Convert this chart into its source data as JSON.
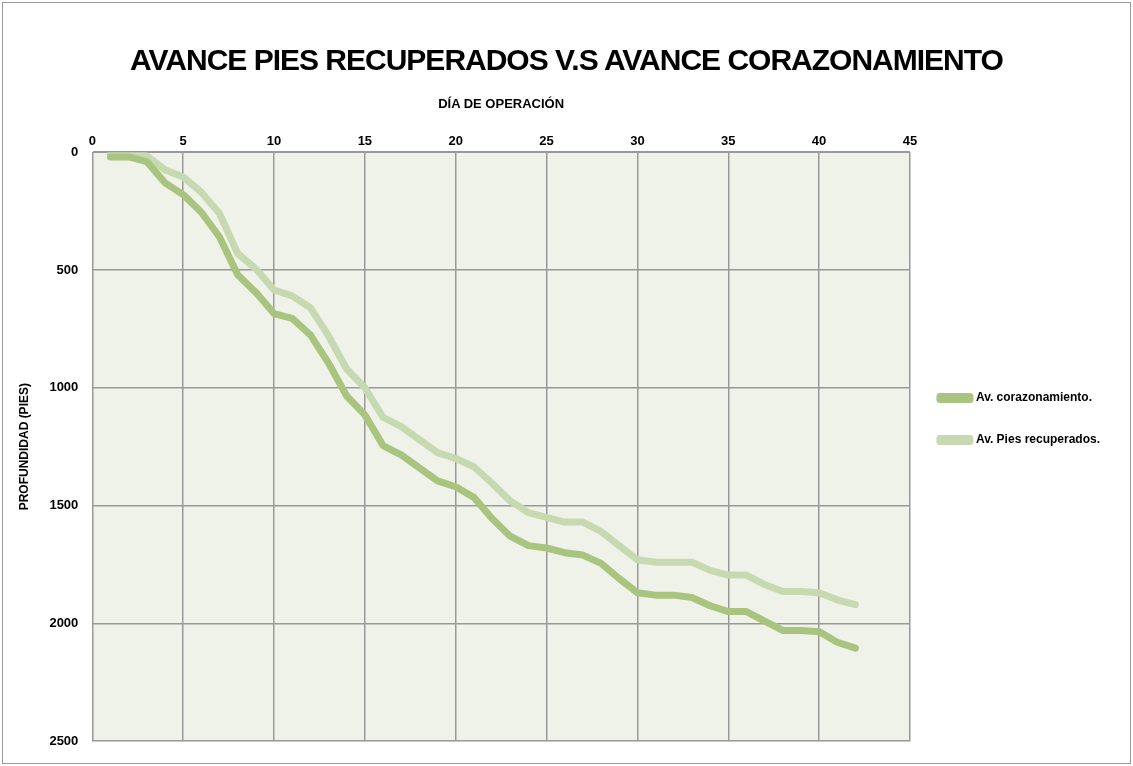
{
  "chart_data": {
    "type": "line",
    "title": "AVANCE PIES RECUPERADOS V.S AVANCE CORAZONAMIENTO",
    "xlabel": "DÍA DE OPERACIÓN",
    "ylabel": "PROFUNDIDAD (PIES)",
    "x": [
      1,
      2,
      3,
      4,
      5,
      6,
      7,
      8,
      9,
      10,
      11,
      12,
      13,
      14,
      15,
      16,
      17,
      18,
      19,
      20,
      21,
      22,
      23,
      24,
      25,
      26,
      27,
      28,
      29,
      30,
      31,
      32,
      33,
      34,
      35,
      36,
      37,
      38,
      39,
      40,
      41,
      42
    ],
    "series": [
      {
        "name": "Av. corazonamiento.",
        "color": "#a9c47f",
        "values": [
          20,
          20,
          40,
          130,
          180,
          255,
          360,
          520,
          595,
          685,
          705,
          775,
          895,
          1035,
          1115,
          1245,
          1285,
          1340,
          1395,
          1420,
          1465,
          1555,
          1630,
          1670,
          1680,
          1700,
          1710,
          1745,
          1810,
          1870,
          1880,
          1880,
          1890,
          1925,
          1950,
          1950,
          1990,
          2030,
          2030,
          2035,
          2080,
          2105
        ]
      },
      {
        "name": "Av. Pies recuperados.",
        "color": "#c6d9b0",
        "values": [
          10,
          10,
          15,
          75,
          105,
          170,
          260,
          430,
          495,
          585,
          610,
          660,
          780,
          920,
          1000,
          1125,
          1165,
          1220,
          1275,
          1300,
          1335,
          1405,
          1480,
          1530,
          1550,
          1570,
          1570,
          1610,
          1670,
          1730,
          1740,
          1740,
          1740,
          1775,
          1795,
          1795,
          1835,
          1865,
          1865,
          1870,
          1900,
          1920
        ]
      }
    ],
    "xlim": [
      0,
      45
    ],
    "xticks": [
      0,
      5,
      10,
      15,
      20,
      25,
      30,
      35,
      40,
      45
    ],
    "ylim": [
      2500,
      0
    ],
    "yticks": [
      0,
      500,
      1000,
      1500,
      2000,
      2500
    ],
    "grid": true,
    "legend": "right",
    "marker": "none",
    "line_style": "solid"
  }
}
